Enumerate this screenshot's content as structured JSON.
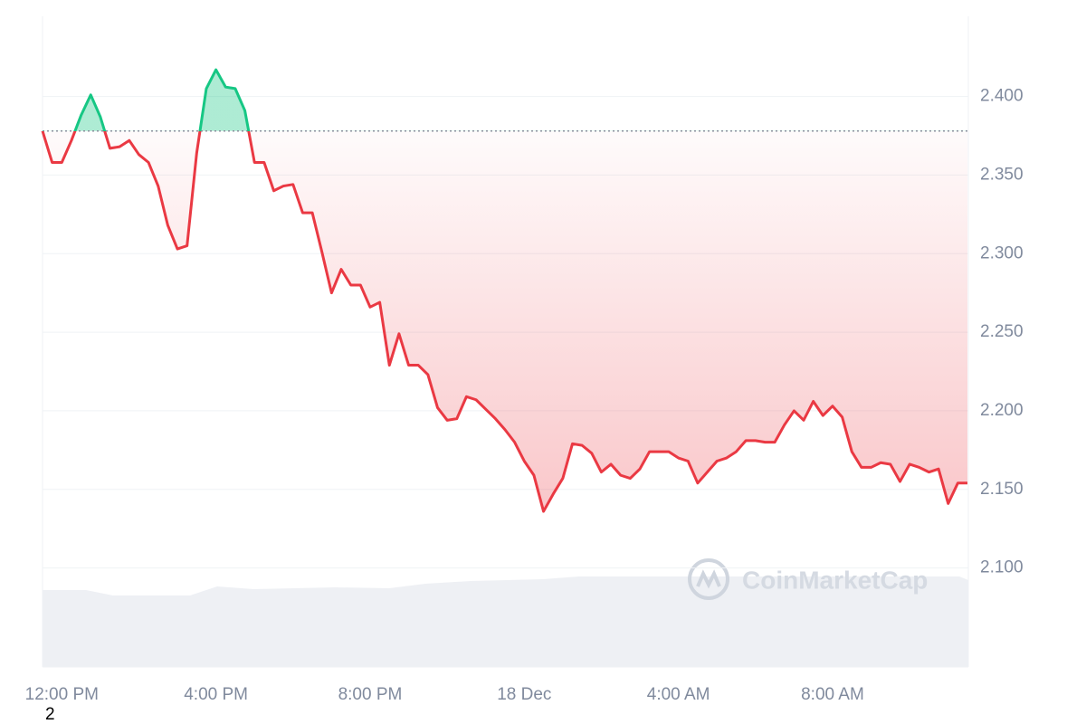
{
  "chart_data": {
    "type": "line",
    "x": [
      -0.5,
      -0.25,
      0,
      0.25,
      0.5,
      0.75,
      1,
      1.25,
      1.5,
      1.75,
      2,
      2.25,
      2.5,
      2.75,
      3,
      3.25,
      3.5,
      3.75,
      4,
      4.25,
      4.5,
      4.75,
      5,
      5.25,
      5.5,
      5.75,
      6,
      6.25,
      6.5,
      6.75,
      7,
      7.25,
      7.5,
      7.75,
      8,
      8.25,
      8.5,
      8.75,
      9,
      9.25,
      9.5,
      9.75,
      10,
      10.25,
      10.5,
      10.75,
      11,
      11.25,
      11.5,
      11.75,
      12,
      12.25,
      12.5,
      12.75,
      13,
      13.25,
      13.5,
      13.75,
      14,
      14.25,
      14.5,
      14.75,
      15,
      15.25,
      15.5,
      15.75,
      16,
      16.25,
      16.5,
      16.75,
      17,
      17.25,
      17.5,
      17.75,
      18,
      18.25,
      18.5,
      18.75,
      19,
      19.25,
      19.5,
      19.75,
      20,
      20.25,
      20.5,
      20.75,
      21,
      21.25,
      21.5,
      21.75,
      22,
      22.25,
      22.5,
      22.75,
      23,
      23.25,
      23.5
    ],
    "values": [
      2.378,
      2.358,
      2.358,
      2.372,
      2.388,
      2.401,
      2.387,
      2.367,
      2.368,
      2.372,
      2.363,
      2.358,
      2.343,
      2.318,
      2.303,
      2.305,
      2.364,
      2.405,
      2.417,
      2.406,
      2.405,
      2.391,
      2.358,
      2.358,
      2.34,
      2.343,
      2.344,
      2.326,
      2.326,
      2.301,
      2.275,
      2.29,
      2.28,
      2.28,
      2.266,
      2.269,
      2.229,
      2.249,
      2.229,
      2.229,
      2.223,
      2.202,
      2.194,
      2.195,
      2.209,
      2.207,
      2.201,
      2.195,
      2.188,
      2.18,
      2.168,
      2.159,
      2.136,
      2.147,
      2.157,
      2.179,
      2.178,
      2.173,
      2.161,
      2.166,
      2.159,
      2.157,
      2.163,
      2.174,
      2.174,
      2.174,
      2.17,
      2.168,
      2.154,
      2.161,
      2.168,
      2.17,
      2.174,
      2.181,
      2.181,
      2.18,
      2.18,
      2.191,
      2.2,
      2.194,
      2.206,
      2.197,
      2.203,
      2.196,
      2.174,
      2.164,
      2.164,
      2.167,
      2.166,
      2.155,
      2.166,
      2.164,
      2.161,
      2.163,
      2.141,
      2.154,
      2.154
    ],
    "reference_line": 2.378,
    "up_color": "#16c784",
    "down_color": "#ea3943",
    "xlim": [
      -0.5,
      23.5
    ],
    "xticks": [
      {
        "value": 0,
        "label": "12:00 PM"
      },
      {
        "value": 4,
        "label": "4:00 PM"
      },
      {
        "value": 8,
        "label": "8:00 PM"
      },
      {
        "value": 12,
        "label": "18 Dec"
      },
      {
        "value": 16,
        "label": "4:00 AM"
      },
      {
        "value": 20,
        "label": "8:00 AM"
      }
    ],
    "ylim": [
      2.037,
      2.451
    ],
    "yticks": [
      {
        "value": 2.1,
        "label": "2.100"
      },
      {
        "value": 2.15,
        "label": "2.150"
      },
      {
        "value": 2.2,
        "label": "2.200"
      },
      {
        "value": 2.25,
        "label": "2.250"
      },
      {
        "value": 2.3,
        "label": "2.300"
      },
      {
        "value": 2.35,
        "label": "2.350"
      },
      {
        "value": 2.4,
        "label": "2.400"
      }
    ],
    "grid": true,
    "watermark": "CoinMarketCap",
    "footnote": "2"
  }
}
